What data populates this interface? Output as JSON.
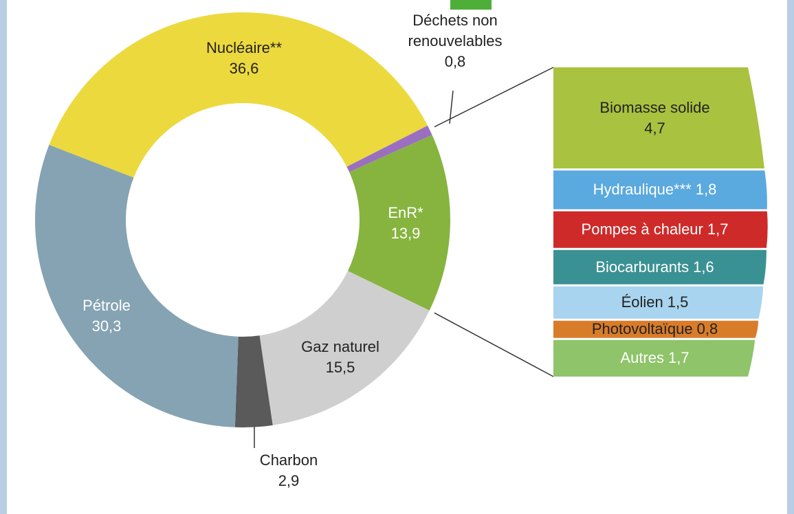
{
  "chart_data": [
    {
      "type": "donut",
      "categories": [
        "Nucléaire**",
        "Déchets non renouvelables",
        "EnR*",
        "Gaz naturel",
        "Charbon",
        "Pétrole"
      ],
      "values": [
        36.6,
        0.8,
        13.9,
        15.5,
        2.9,
        30.3
      ],
      "value_labels": [
        "36,6",
        "0,8",
        "13,9",
        "15,5",
        "2,9",
        "30,3"
      ],
      "colors": [
        "#ecd93e",
        "#9b6fc0",
        "#86b43f",
        "#cfcfcf",
        "#5a5a5a",
        "#86a3b3"
      ],
      "label_colors": [
        "#222222",
        "#222222",
        "#ffffff",
        "#222222",
        "#222222",
        "#ffffff"
      ]
    },
    {
      "type": "stacked-bar",
      "categories": [
        "Biomasse solide",
        "Hydraulique***",
        "Pompes à chaleur",
        "Biocarburants",
        "Éolien",
        "Photovoltaïque",
        "Autres"
      ],
      "values": [
        4.7,
        1.8,
        1.7,
        1.6,
        1.5,
        0.8,
        1.7
      ],
      "value_labels": [
        "4,7",
        "1,8",
        "1,7",
        "1,6",
        "1,5",
        "0,8",
        "1,7"
      ],
      "colors": [
        "#a9c23f",
        "#5aa9df",
        "#cf2a2a",
        "#3a9193",
        "#a9d4ef",
        "#d97c2a",
        "#8fc46a"
      ],
      "label_colors": [
        "#222222",
        "#ffffff",
        "#ffffff",
        "#ffffff",
        "#222222",
        "#222222",
        "#ffffff"
      ]
    }
  ]
}
